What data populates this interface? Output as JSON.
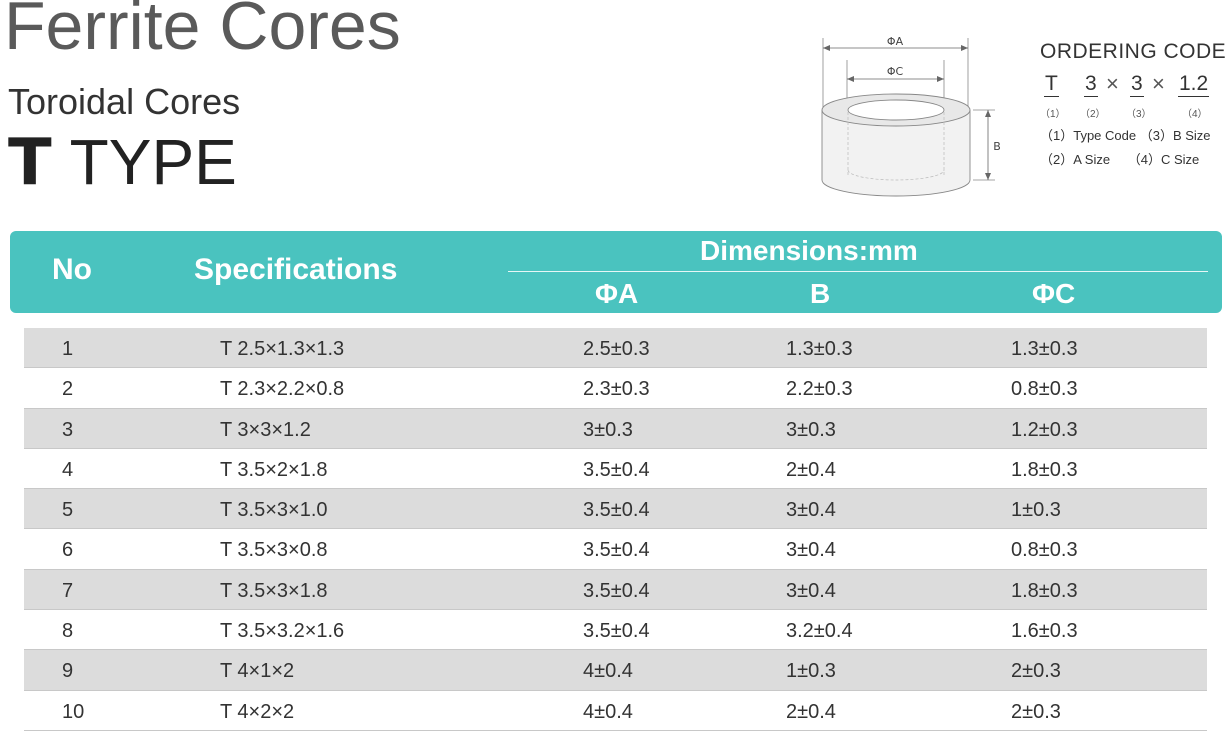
{
  "header": {
    "title": "Ferrite Cores",
    "subtitle": "Toroidal Cores",
    "type_letter": "T",
    "type_word": "TYPE"
  },
  "diagram": {
    "label_a": "ΦA",
    "label_c": "ΦC",
    "label_b": "B"
  },
  "ordering": {
    "title": "ORDERING CODE",
    "code_parts": [
      "T",
      "3",
      "×",
      "3",
      "×",
      "1.2"
    ],
    "code_numbers": [
      "（1）",
      "（2）",
      "（3）",
      "（4）"
    ],
    "legend": [
      [
        "（1）Type Code",
        "（3）B Size"
      ],
      [
        "（2）A Size",
        "（4）C Size"
      ]
    ]
  },
  "table": {
    "headers": {
      "no": "No",
      "spec": "Specifications",
      "dimensions": "Dimensions:mm",
      "a": "ΦA",
      "b": "B",
      "c": "ΦC"
    },
    "rows": [
      {
        "no": "1",
        "spec": "T  2.5×1.3×1.3",
        "a": "2.5±0.3",
        "b": "1.3±0.3",
        "c": "1.3±0.3"
      },
      {
        "no": "2",
        "spec": "T  2.3×2.2×0.8",
        "a": "2.3±0.3",
        "b": "2.2±0.3",
        "c": "0.8±0.3"
      },
      {
        "no": "3",
        "spec": "T  3×3×1.2",
        "a": "3±0.3",
        "b": "3±0.3",
        "c": "1.2±0.3"
      },
      {
        "no": "4",
        "spec": "T  3.5×2×1.8",
        "a": "3.5±0.4",
        "b": "2±0.4",
        "c": "1.8±0.3"
      },
      {
        "no": "5",
        "spec": "T  3.5×3×1.0",
        "a": "3.5±0.4",
        "b": "3±0.4",
        "c": "1±0.3"
      },
      {
        "no": "6",
        "spec": "T  3.5×3×0.8",
        "a": "3.5±0.4",
        "b": "3±0.4",
        "c": "0.8±0.3"
      },
      {
        "no": "7",
        "spec": "T  3.5×3×1.8",
        "a": "3.5±0.4",
        "b": "3±0.4",
        "c": "1.8±0.3"
      },
      {
        "no": "8",
        "spec": "T  3.5×3.2×1.6",
        "a": "3.5±0.4",
        "b": "3.2±0.4",
        "c": "1.6±0.3"
      },
      {
        "no": "9",
        "spec": "T  4×1×2",
        "a": "4±0.4",
        "b": "1±0.3",
        "c": "2±0.3"
      },
      {
        "no": "10",
        "spec": "T  4×2×2",
        "a": "4±0.4",
        "b": "2±0.4",
        "c": "2±0.3"
      }
    ]
  },
  "colors": {
    "header_bg": "#4ac3bf",
    "row_shade": "#dcdcdc"
  }
}
